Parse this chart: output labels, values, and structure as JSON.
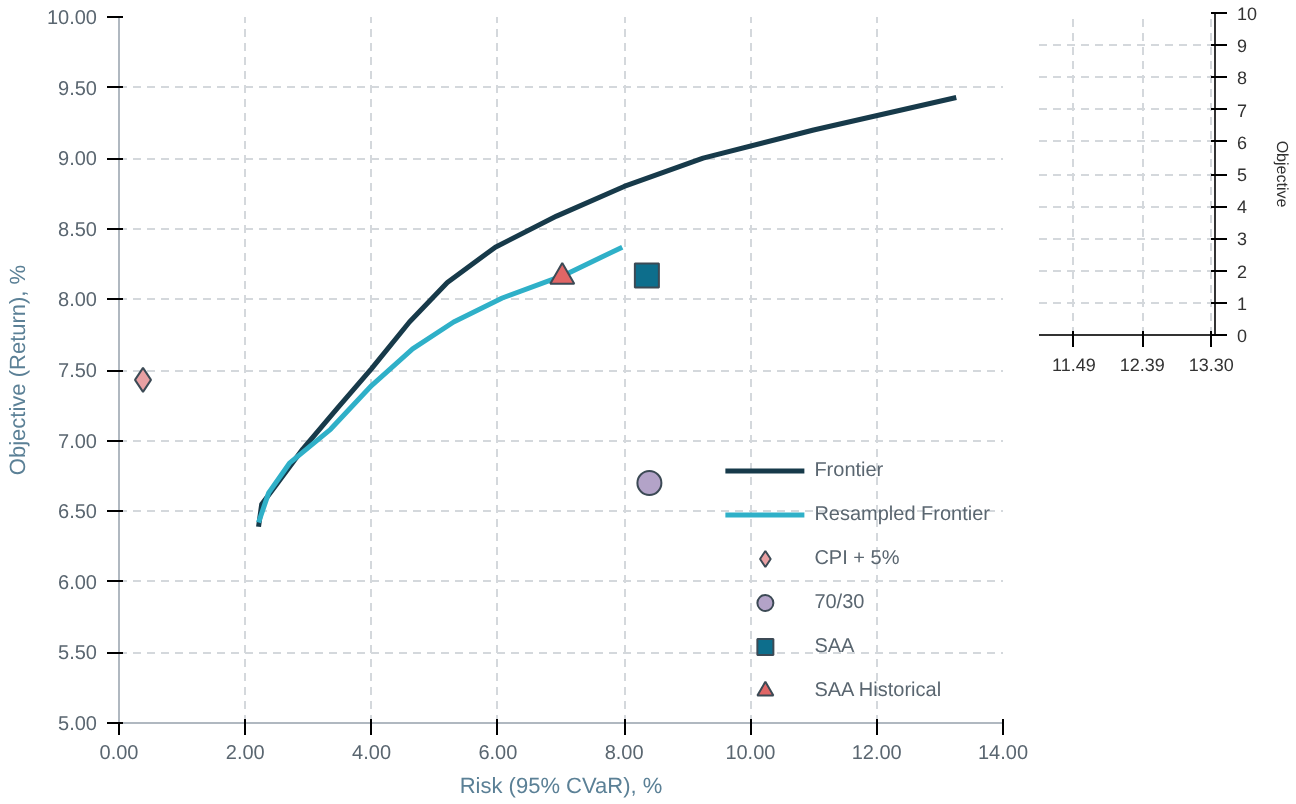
{
  "chart_data": [
    {
      "type": "line",
      "xlabel": "Risk (95% CVaR), %",
      "ylabel": "Objective (Return), %",
      "xlim": [
        0,
        14
      ],
      "ylim": [
        5,
        10
      ],
      "xticks": [
        {
          "value": 0,
          "label": "0.00"
        },
        {
          "value": 2,
          "label": "2.00"
        },
        {
          "value": 4,
          "label": "4.00"
        },
        {
          "value": 6,
          "label": "6.00"
        },
        {
          "value": 8,
          "label": "8.00"
        },
        {
          "value": 10,
          "label": "10.00"
        },
        {
          "value": 12,
          "label": "12.00"
        },
        {
          "value": 14,
          "label": "14.00"
        }
      ],
      "yticks": [
        {
          "value": 5,
          "label": "5.00"
        },
        {
          "value": 5.5,
          "label": "5.50"
        },
        {
          "value": 6,
          "label": "6.00"
        },
        {
          "value": 6.5,
          "label": "6.50"
        },
        {
          "value": 7,
          "label": "7.00"
        },
        {
          "value": 7.5,
          "label": "7.50"
        },
        {
          "value": 8,
          "label": "8.00"
        },
        {
          "value": 8.5,
          "label": "8.50"
        },
        {
          "value": 9,
          "label": "9.00"
        },
        {
          "value": 9.5,
          "label": "9.50"
        },
        {
          "value": 10,
          "label": "10.00"
        }
      ],
      "grid": true,
      "legend": "bottom right",
      "line_style": "solid",
      "series": [
        {
          "name": "Frontier",
          "type": "line",
          "color": "#173a4a",
          "x": [
            2.21,
            2.26,
            2.48,
            2.91,
            3.46,
            4.0,
            4.6,
            5.2,
            5.96,
            6.93,
            8.0,
            9.25,
            11.0,
            13.26
          ],
          "values": [
            6.39,
            6.55,
            6.68,
            6.94,
            7.23,
            7.51,
            7.84,
            8.12,
            8.37,
            8.59,
            8.8,
            9.0,
            9.2,
            9.43
          ]
        },
        {
          "name": "Resampled Frontier",
          "type": "line",
          "color": "#2fb0c8",
          "x": [
            2.21,
            2.37,
            2.7,
            3.35,
            4.0,
            4.65,
            5.3,
            6.07,
            7.04,
            7.97
          ],
          "values": [
            6.42,
            6.63,
            6.84,
            7.08,
            7.39,
            7.65,
            7.84,
            8.01,
            8.17,
            8.37
          ]
        },
        {
          "name": "CPI + 5%",
          "type": "scatter",
          "marker": "diamond",
          "color": "#e8a0a3",
          "x": [
            0.38
          ],
          "values": [
            7.43
          ]
        },
        {
          "name": "70/30",
          "type": "scatter",
          "marker": "circle",
          "color": "#b3a3c8",
          "x": [
            8.4
          ],
          "values": [
            6.7
          ]
        },
        {
          "name": "SAA",
          "type": "scatter",
          "marker": "square",
          "color": "#0d6e8c",
          "x": [
            8.36
          ],
          "values": [
            8.17
          ]
        },
        {
          "name": "SAA Historical",
          "type": "scatter",
          "marker": "triangle",
          "color": "#e06666",
          "x": [
            7.02
          ],
          "values": [
            8.16
          ]
        }
      ]
    },
    {
      "type": "scatter",
      "ylabel": "Objective",
      "xlim": [
        11.03,
        13.35
      ],
      "ylim": [
        0,
        10
      ],
      "xticks": [
        11.49,
        12.39,
        {
          "value": 13.3,
          "label": "13.30"
        }
      ],
      "yticks": [
        0,
        1,
        2,
        3,
        4,
        5,
        6,
        7,
        8,
        9,
        10
      ],
      "grid": true
    }
  ]
}
